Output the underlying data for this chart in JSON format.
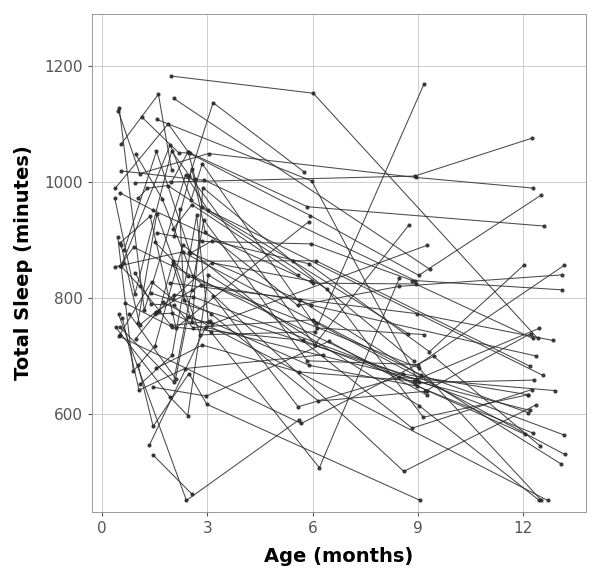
{
  "title": "",
  "xlabel": "Age (months)",
  "ylabel": "Total Sleep (minutes)",
  "xlim": [
    -0.3,
    13.8
  ],
  "ylim": [
    430,
    1290
  ],
  "xticks": [
    0,
    3,
    6,
    9,
    12
  ],
  "yticks": [
    600,
    800,
    1000,
    1200
  ],
  "background_color": "#ffffff",
  "grid_color": "#cccccc",
  "line_color": "#2a2a2a",
  "line_alpha": 0.85,
  "line_width": 0.75,
  "marker_size": 2.0,
  "seed": 7,
  "n_subjects": 55
}
